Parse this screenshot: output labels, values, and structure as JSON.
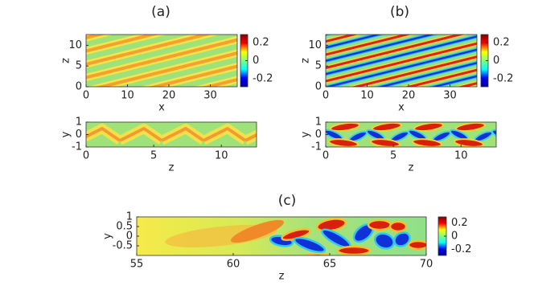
{
  "chart_data": [
    {
      "type": "heatmap",
      "title": "(a)",
      "xlabel": "x",
      "ylabel": "z",
      "xlim": [
        0,
        36.5
      ],
      "ylim": [
        0,
        12.6
      ],
      "xticks": [
        0,
        10,
        20,
        30
      ],
      "yticks": [
        0,
        5,
        10
      ],
      "colormap": "jet",
      "clim": [
        -0.29,
        0.29
      ],
      "cticks": [
        0.2,
        0,
        -0.2
      ]
    },
    {
      "type": "heatmap",
      "xlabel": "z",
      "ylabel": "y",
      "xlim": [
        0,
        12.6
      ],
      "ylim": [
        -1,
        1
      ],
      "xticks": [
        0,
        5,
        10
      ],
      "yticks": [
        1,
        0,
        -1
      ],
      "colormap": "jet"
    },
    {
      "type": "heatmap",
      "title": "(b)",
      "xlabel": "x",
      "ylabel": "z",
      "xlim": [
        0,
        36.5
      ],
      "ylim": [
        0,
        12.6
      ],
      "xticks": [
        0,
        10,
        20,
        30
      ],
      "yticks": [
        0,
        5,
        10
      ],
      "colormap": "jet",
      "clim": [
        -0.29,
        0.29
      ],
      "cticks": [
        0.2,
        0,
        -0.2
      ]
    },
    {
      "type": "heatmap",
      "xlabel": "z",
      "ylabel": "y",
      "xlim": [
        0,
        12.6
      ],
      "ylim": [
        -1,
        1
      ],
      "xticks": [
        0,
        5,
        10
      ],
      "yticks": [
        1,
        0,
        -1
      ],
      "colormap": "jet"
    },
    {
      "type": "heatmap",
      "title": "(c)",
      "xlabel": "z",
      "ylabel": "y",
      "xlim": [
        55,
        70
      ],
      "ylim": [
        -1,
        1
      ],
      "xticks": [
        55,
        60,
        65,
        70
      ],
      "yticks": [
        1,
        0.5,
        0,
        -0.5
      ],
      "colormap": "jet",
      "clim": [
        -0.29,
        0.29
      ],
      "cticks": [
        0.2,
        0,
        -0.2
      ]
    }
  ]
}
